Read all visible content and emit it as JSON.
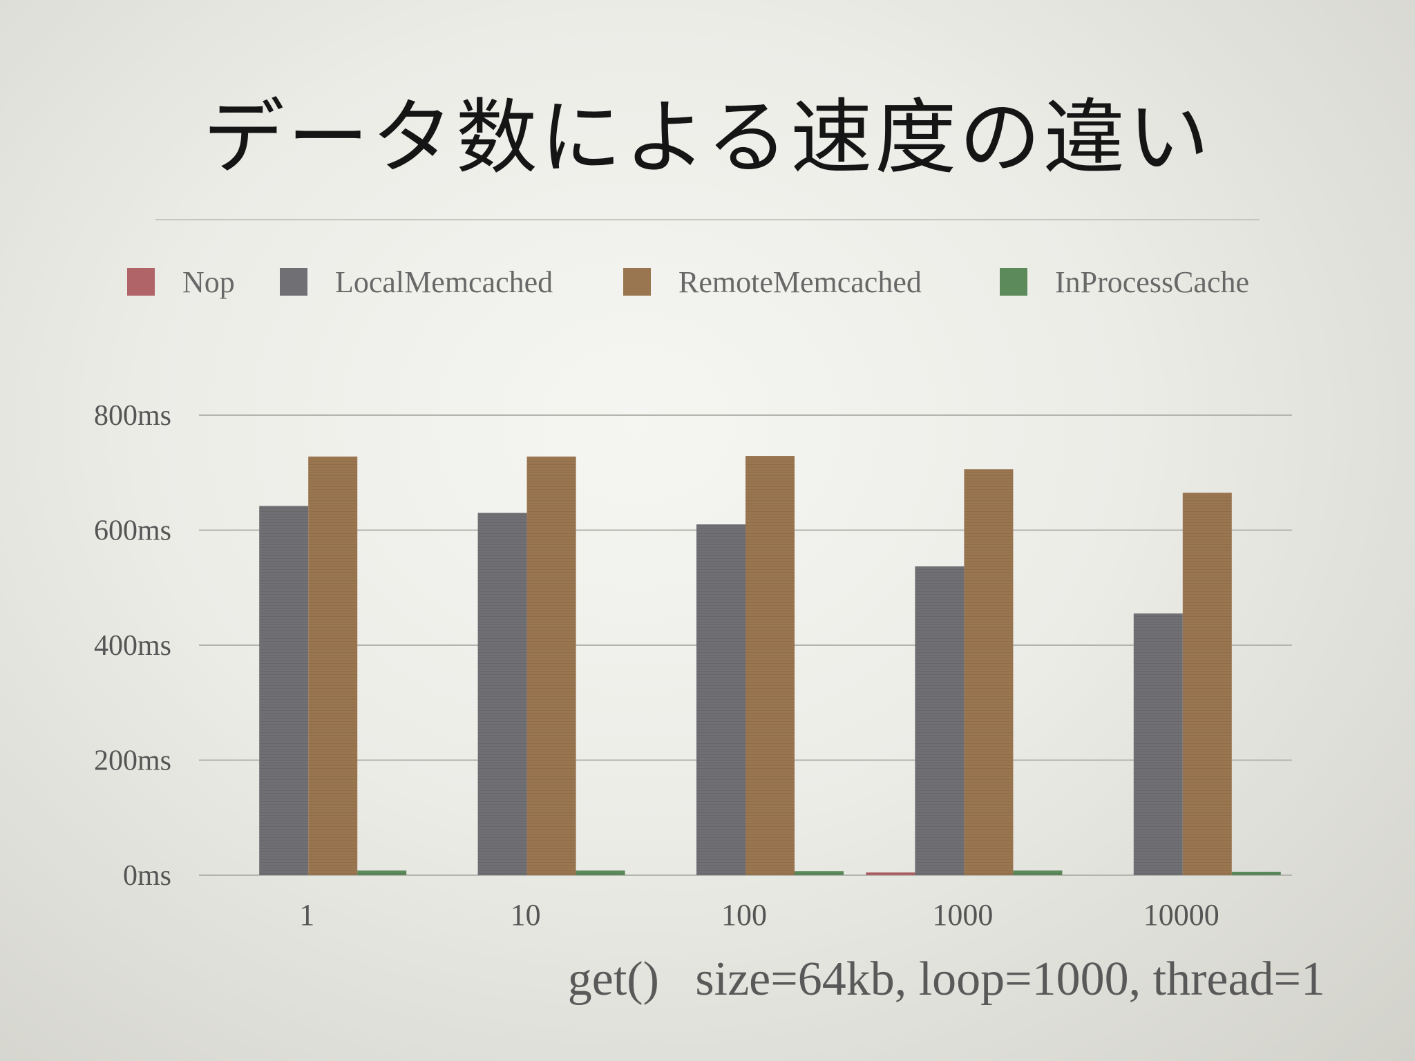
{
  "slide": {
    "title": "データ数による速度の違い",
    "caption": "get()   size=64kb, loop=1000, thread=1"
  },
  "colors": {
    "Nop": "#b06468",
    "LocalMemcached": "#6f6f74",
    "RemoteMemcached": "#9a7650",
    "InProcessCache": "#5c8a5a",
    "grid": "#b4b4ae",
    "axis_text": "#555555"
  },
  "chart_data": {
    "type": "bar",
    "categories": [
      "1",
      "10",
      "100",
      "1000",
      "10000"
    ],
    "series": [
      {
        "name": "Nop",
        "values": [
          0,
          0,
          0,
          1,
          0
        ]
      },
      {
        "name": "LocalMemcached",
        "values": [
          642,
          630,
          610,
          537,
          455
        ]
      },
      {
        "name": "RemoteMemcached",
        "values": [
          728,
          728,
          729,
          706,
          665
        ]
      },
      {
        "name": "InProcessCache",
        "values": [
          8,
          8,
          7,
          8,
          6
        ]
      }
    ],
    "ylim": [
      0,
      800
    ],
    "yticks": [
      0,
      200,
      400,
      600,
      800
    ],
    "ytick_labels": [
      "0ms",
      "200ms",
      "400ms",
      "600ms",
      "800ms"
    ],
    "grid": true,
    "legend_position": "top"
  }
}
